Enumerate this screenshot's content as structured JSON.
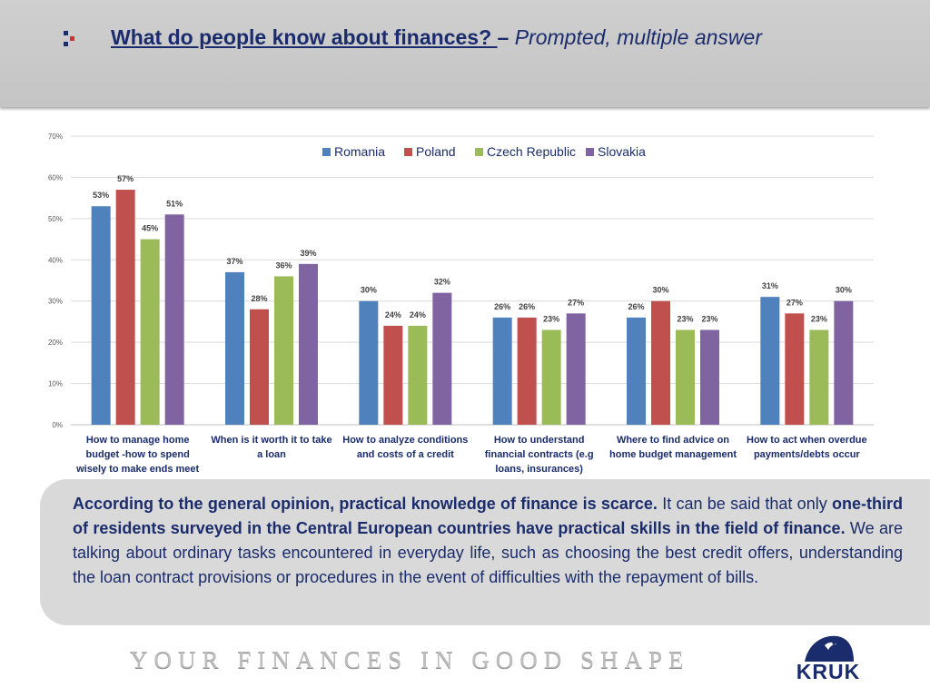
{
  "header": {
    "title_main": "What do people know about finances? ",
    "title_dash": "–",
    "title_sub": " Prompted, multiple answer",
    "mark_colors": [
      "#1a2c6b",
      "#d32f2f"
    ]
  },
  "chart_data": {
    "type": "bar",
    "categories": [
      "How to manage home budget -how to spend wisely to make ends meet",
      "When is it worth it to take a loan",
      "How to analyze conditions and costs of a credit",
      "How to understand financial contracts (e.g loans, insurances)",
      "Where to find advice on home budget management",
      "How to act when overdue payments/debts occur"
    ],
    "category_lines": [
      [
        "How to manage home",
        "budget -how to spend",
        "wisely to make ends meet"
      ],
      [
        "When is it worth it to take",
        "a loan"
      ],
      [
        "How to analyze conditions",
        "and costs of a credit"
      ],
      [
        "How to understand",
        "financial contracts (e.g",
        "loans, insurances)"
      ],
      [
        "Where to find advice on",
        "home budget management"
      ],
      [
        "How to act when overdue",
        "payments/debts occur"
      ]
    ],
    "series": [
      {
        "name": "Romania",
        "color": "#4f81bd",
        "values": [
          53,
          37,
          30,
          26,
          26,
          31
        ]
      },
      {
        "name": "Poland",
        "color": "#c0504d",
        "values": [
          57,
          28,
          24,
          26,
          30,
          27
        ]
      },
      {
        "name": "Czech Republic",
        "color": "#9bbb59",
        "values": [
          45,
          36,
          24,
          23,
          23,
          23
        ]
      },
      {
        "name": "Slovakia",
        "color": "#8064a2",
        "values": [
          51,
          39,
          32,
          27,
          23,
          30
        ]
      }
    ],
    "ylim": [
      0,
      70
    ],
    "yticks": [
      "0%",
      "10%",
      "20%",
      "30%",
      "40%",
      "50%",
      "60%",
      "70%"
    ],
    "value_suffix": "%",
    "grid": true,
    "legend_position": "top-center"
  },
  "panel": {
    "bold1": "According to the general opinion, practical knowledge of finance is scarce.",
    "text1": " It can be said that only ",
    "bold2": "one-third of residents surveyed in the Central European countries have practical skills in the field of finance.",
    "text2": " We are talking about ordinary tasks encountered in everyday life, such as choosing the best credit offers, understanding the loan contract provisions or procedures in the event of difficulties with the repayment of bills."
  },
  "footer": {
    "tagline": "YOUR FINANCES IN GOOD SHAPE",
    "logo_text": "KRUK"
  }
}
